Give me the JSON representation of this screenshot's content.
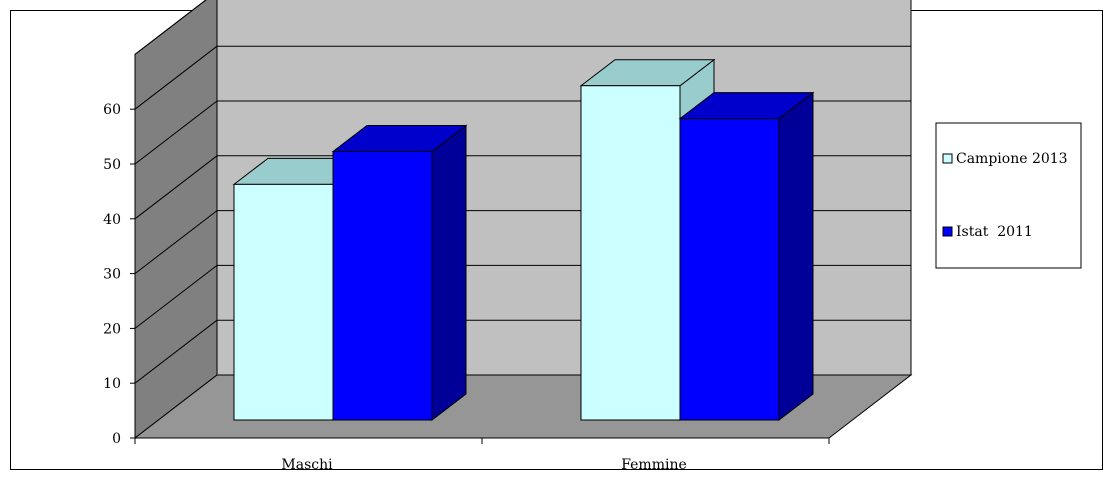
{
  "chart_data": {
    "type": "bar",
    "style": "3d-clustered-column",
    "categories": [
      "Maschi",
      "Femmine"
    ],
    "series": [
      {
        "name": "Campione 2013",
        "values": [
          43,
          61
        ],
        "color": "#ccffff",
        "top_color": "#99cccc",
        "side_color": "#99cccc"
      },
      {
        "name": "Istat  2011",
        "values": [
          49,
          55
        ],
        "color": "#0000ff",
        "top_color": "#0000cc",
        "side_color": "#000099"
      }
    ],
    "y_ticks": [
      "0",
      "10",
      "20",
      "30",
      "40",
      "50",
      "60"
    ],
    "ylim": [
      0,
      70
    ],
    "grid": true,
    "legend_position": "right",
    "colors": {
      "back_wall": "#c0c0c0",
      "side_wall": "#808080",
      "floor": "#969696",
      "gridline": "#000000"
    }
  }
}
